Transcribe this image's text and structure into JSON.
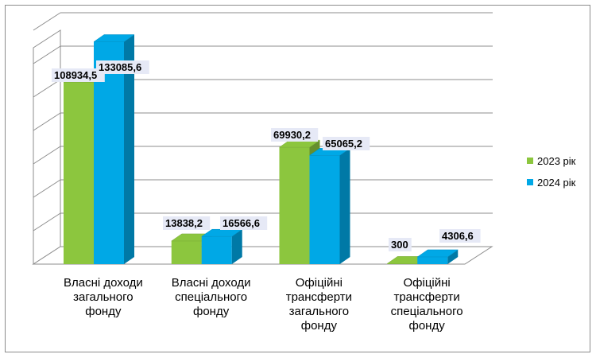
{
  "chart_data": {
    "type": "bar",
    "style": "3d-clustered-column",
    "categories": [
      [
        "Власні доходи",
        "загального",
        "фонду"
      ],
      [
        "Власні доходи",
        "спеціального",
        "фонду"
      ],
      [
        "Офіційні",
        "трансферти",
        "загального",
        "фонду"
      ],
      [
        "Офіційні",
        "трансферти",
        "спеціального",
        "фонду"
      ]
    ],
    "series": [
      {
        "name": "2023 рік",
        "color": "#8cc63e",
        "values": [
          108934.5,
          13838.2,
          69930.2,
          300
        ],
        "labels": [
          "108934,5",
          "13838,2",
          "69930,2",
          "300"
        ]
      },
      {
        "name": "2024 рік",
        "color": "#00a8e6",
        "values": [
          133085.6,
          16566.6,
          65065.2,
          4306.6
        ],
        "labels": [
          "133085,6",
          "16566,6",
          "65065,2",
          "4306,6"
        ]
      }
    ],
    "ylim": [
      0,
      140000
    ],
    "gridlines": 7,
    "legend_position": "right",
    "grid": true
  }
}
